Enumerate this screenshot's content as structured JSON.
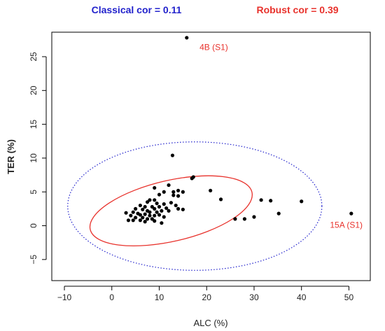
{
  "chart_data": {
    "type": "scatter",
    "header_left": "Classical  cor = 0.11",
    "header_right": "Robust  cor = 0.39",
    "xlabel": "ALC (%)",
    "ylabel": "TER (%)",
    "xlim": [
      -10,
      52
    ],
    "ylim": [
      -7.5,
      28
    ],
    "x_ticks": [
      -10,
      0,
      10,
      20,
      30,
      40,
      50
    ],
    "y_ticks": [
      -5,
      0,
      5,
      10,
      15,
      20,
      25
    ],
    "x_tick_labels": [
      "−10",
      "0",
      "10",
      "20",
      "30",
      "40",
      "50"
    ],
    "y_tick_labels": [
      "−5",
      "0",
      "5",
      "10",
      "15",
      "20",
      "25"
    ],
    "colors": {
      "classical": "#2222cc",
      "robust": "#e8322c",
      "points": "#000000",
      "annotation": "#e8322c"
    },
    "points": [
      [
        15.8,
        27.8
      ],
      [
        12.8,
        10.4
      ],
      [
        17.2,
        7.2
      ],
      [
        16.9,
        7.0
      ],
      [
        12.0,
        6.0
      ],
      [
        9.0,
        5.6
      ],
      [
        11.0,
        5.0
      ],
      [
        13.0,
        5.0
      ],
      [
        14.0,
        5.2
      ],
      [
        15.0,
        5.0
      ],
      [
        20.8,
        5.2
      ],
      [
        13.0,
        4.5
      ],
      [
        14.0,
        4.4
      ],
      [
        10.0,
        4.6
      ],
      [
        23.0,
        3.9
      ],
      [
        31.5,
        3.8
      ],
      [
        33.5,
        3.7
      ],
      [
        40.0,
        3.6
      ],
      [
        8.0,
        3.8
      ],
      [
        9.0,
        3.8
      ],
      [
        7.5,
        3.5
      ],
      [
        9.5,
        3.3
      ],
      [
        11.0,
        3.2
      ],
      [
        12.5,
        3.4
      ],
      [
        13.5,
        3.0
      ],
      [
        6.0,
        3.0
      ],
      [
        7.0,
        2.8
      ],
      [
        8.5,
        2.8
      ],
      [
        10.0,
        2.8
      ],
      [
        11.5,
        2.6
      ],
      [
        12.0,
        2.2
      ],
      [
        14.0,
        2.5
      ],
      [
        15.0,
        2.4
      ],
      [
        5.0,
        2.5
      ],
      [
        6.5,
        2.4
      ],
      [
        7.5,
        2.2
      ],
      [
        8.0,
        2.0
      ],
      [
        9.0,
        2.5
      ],
      [
        9.5,
        2.0
      ],
      [
        10.5,
        2.2
      ],
      [
        4.5,
        2.0
      ],
      [
        5.5,
        1.8
      ],
      [
        6.0,
        1.6
      ],
      [
        7.0,
        1.7
      ],
      [
        8.0,
        1.5
      ],
      [
        9.0,
        1.5
      ],
      [
        10.0,
        1.6
      ],
      [
        3.0,
        1.9
      ],
      [
        4.0,
        1.5
      ],
      [
        5.0,
        1.2
      ],
      [
        6.5,
        1.2
      ],
      [
        7.5,
        1.0
      ],
      [
        8.5,
        1.0
      ],
      [
        11.0,
        1.3
      ],
      [
        3.5,
        0.8
      ],
      [
        4.5,
        0.8
      ],
      [
        6.0,
        0.8
      ],
      [
        7.0,
        0.6
      ],
      [
        9.0,
        0.7
      ],
      [
        10.5,
        0.4
      ],
      [
        35.2,
        1.8
      ],
      [
        50.5,
        1.8
      ],
      [
        26.0,
        1.0
      ],
      [
        28.0,
        1.0
      ],
      [
        30.0,
        1.3
      ]
    ],
    "annotations": [
      {
        "label": "4B (S1)",
        "x": 18.5,
        "y": 26.0
      },
      {
        "label": "15A (S1)",
        "x": 46.0,
        "y": -0.3
      }
    ],
    "ellipses": [
      {
        "name": "Classical",
        "center": [
          17.5,
          2.9
        ],
        "rx": 26.8,
        "ry": 9.5,
        "angle_deg": 0,
        "style": "dotted"
      },
      {
        "name": "Robust",
        "center": [
          12.5,
          2.2
        ],
        "rx": 17.5,
        "ry": 4.5,
        "angle_deg": 13,
        "style": "solid"
      }
    ]
  }
}
